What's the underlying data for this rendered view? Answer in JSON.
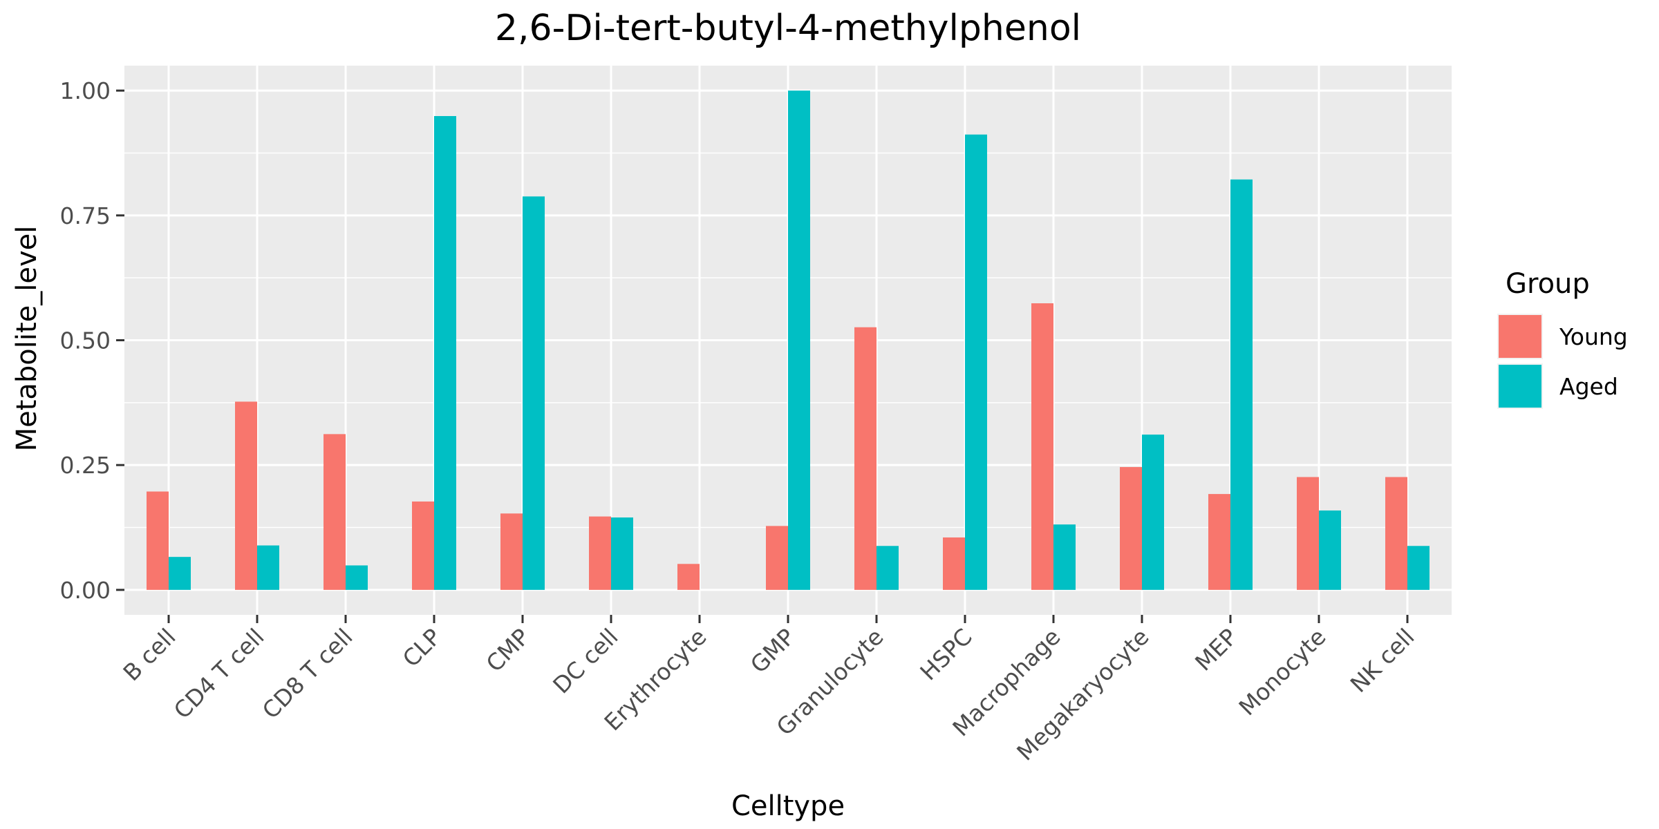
{
  "chart_data": {
    "type": "bar",
    "title": "2,6-Di-tert-butyl-4-methylphenol",
    "xlabel": "Celltype",
    "ylabel": "Metabolite_level",
    "categories": [
      "B cell",
      "CD4 T cell",
      "CD8 T cell",
      "CLP",
      "CMP",
      "DC cell",
      "Erythrocyte",
      "GMP",
      "Granulocyte",
      "HSPC",
      "Macrophage",
      "Megakaryocyte",
      "MEP",
      "Monocyte",
      "NK cell"
    ],
    "series": [
      {
        "name": "Young",
        "color": "#F8766D",
        "values": [
          0.197,
          0.377,
          0.312,
          0.177,
          0.153,
          0.147,
          0.052,
          0.128,
          0.526,
          0.105,
          0.574,
          0.246,
          0.192,
          0.226,
          0.226
        ]
      },
      {
        "name": "Aged",
        "color": "#00BFC4",
        "values": [
          0.066,
          0.089,
          0.049,
          0.949,
          0.788,
          0.145,
          0.0,
          1.0,
          0.088,
          0.912,
          0.131,
          0.311,
          0.822,
          0.159,
          0.088
        ]
      }
    ],
    "ylim": [
      -0.05,
      1.05
    ],
    "yticks": [
      0,
      0.25,
      0.5,
      0.75,
      1.0
    ],
    "ytick_labels": [
      "0.00",
      "0.25",
      "0.50",
      "0.75",
      "1.00"
    ],
    "grid": true,
    "legend": {
      "title": "Group",
      "position": "right"
    },
    "panel_background": "#EBEBEB",
    "grid_color": "#FFFFFF"
  }
}
